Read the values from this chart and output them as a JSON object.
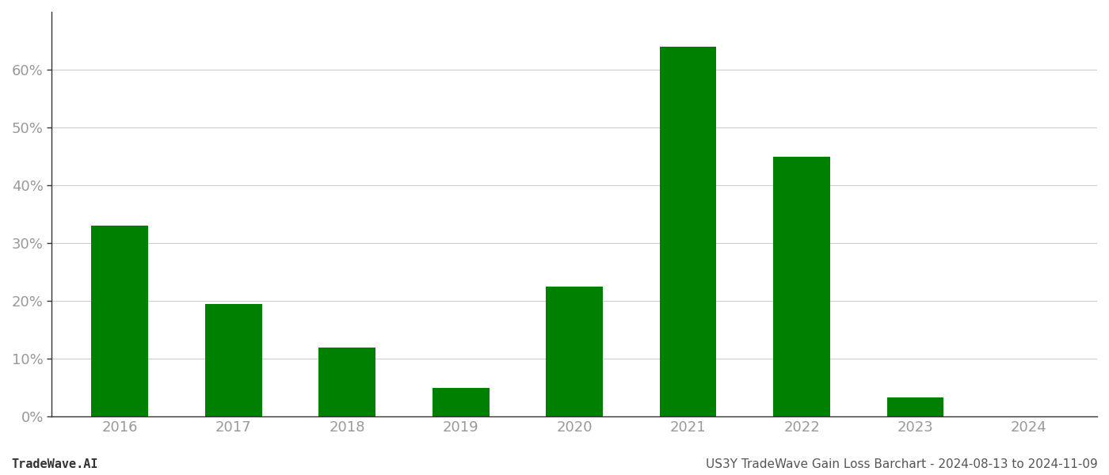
{
  "categories": [
    "2016",
    "2017",
    "2018",
    "2019",
    "2020",
    "2021",
    "2022",
    "2023",
    "2024"
  ],
  "values": [
    0.33,
    0.195,
    0.12,
    0.05,
    0.225,
    0.64,
    0.45,
    0.033,
    0.0
  ],
  "bar_color": "#008000",
  "background_color": "#ffffff",
  "grid_color": "#cccccc",
  "title": "US3Y TradeWave Gain Loss Barchart - 2024-08-13 to 2024-11-09",
  "footer_left": "TradeWave.AI",
  "ylim": [
    0,
    0.7
  ],
  "yticks": [
    0.0,
    0.1,
    0.2,
    0.3,
    0.4,
    0.5,
    0.6
  ],
  "tick_label_color": "#999999",
  "axis_label_fontsize": 13,
  "footer_fontsize": 11,
  "title_fontsize": 11,
  "bar_width": 0.5
}
